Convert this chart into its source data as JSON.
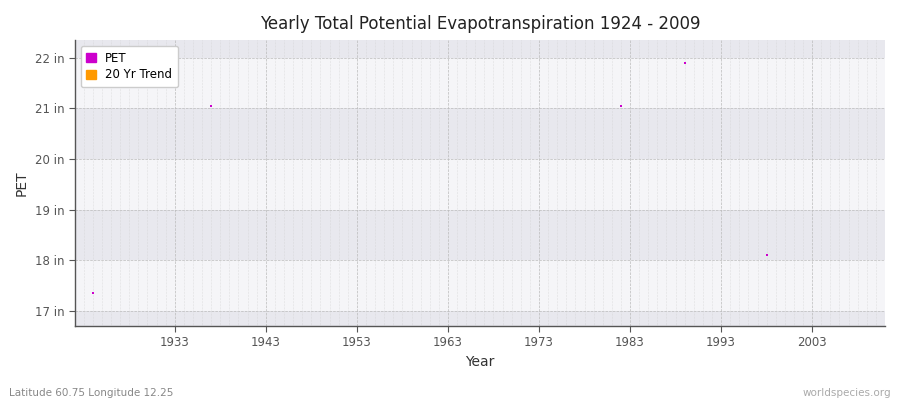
{
  "title": "Yearly Total Potential Evapotranspiration 1924 - 2009",
  "xlabel": "Year",
  "ylabel": "PET",
  "background_color": "#ffffff",
  "plot_bg_color": "#ebebeb",
  "pet_color": "#cc00cc",
  "trend_color": "#ff9900",
  "ylim": [
    16.7,
    22.35
  ],
  "xlim": [
    1922,
    2011
  ],
  "yticks": [
    17,
    18,
    19,
    20,
    21,
    22
  ],
  "ytick_labels": [
    "17 in",
    "18 in",
    "19 in",
    "20 in",
    "21 in",
    "22 in"
  ],
  "xticks": [
    1933,
    1943,
    1953,
    1963,
    1973,
    1983,
    1993,
    2003
  ],
  "band_colors": [
    "#e8e8ee",
    "#f5f5f8"
  ],
  "pet_data": [
    [
      1924,
      17.35
    ],
    [
      1937,
      21.05
    ],
    [
      1982,
      21.05
    ],
    [
      1989,
      21.9
    ],
    [
      1998,
      18.1
    ]
  ],
  "footer_left": "Latitude 60.75 Longitude 12.25",
  "footer_right": "worldspecies.org",
  "legend_entries": [
    "PET",
    "20 Yr Trend"
  ],
  "marker_size": 3
}
